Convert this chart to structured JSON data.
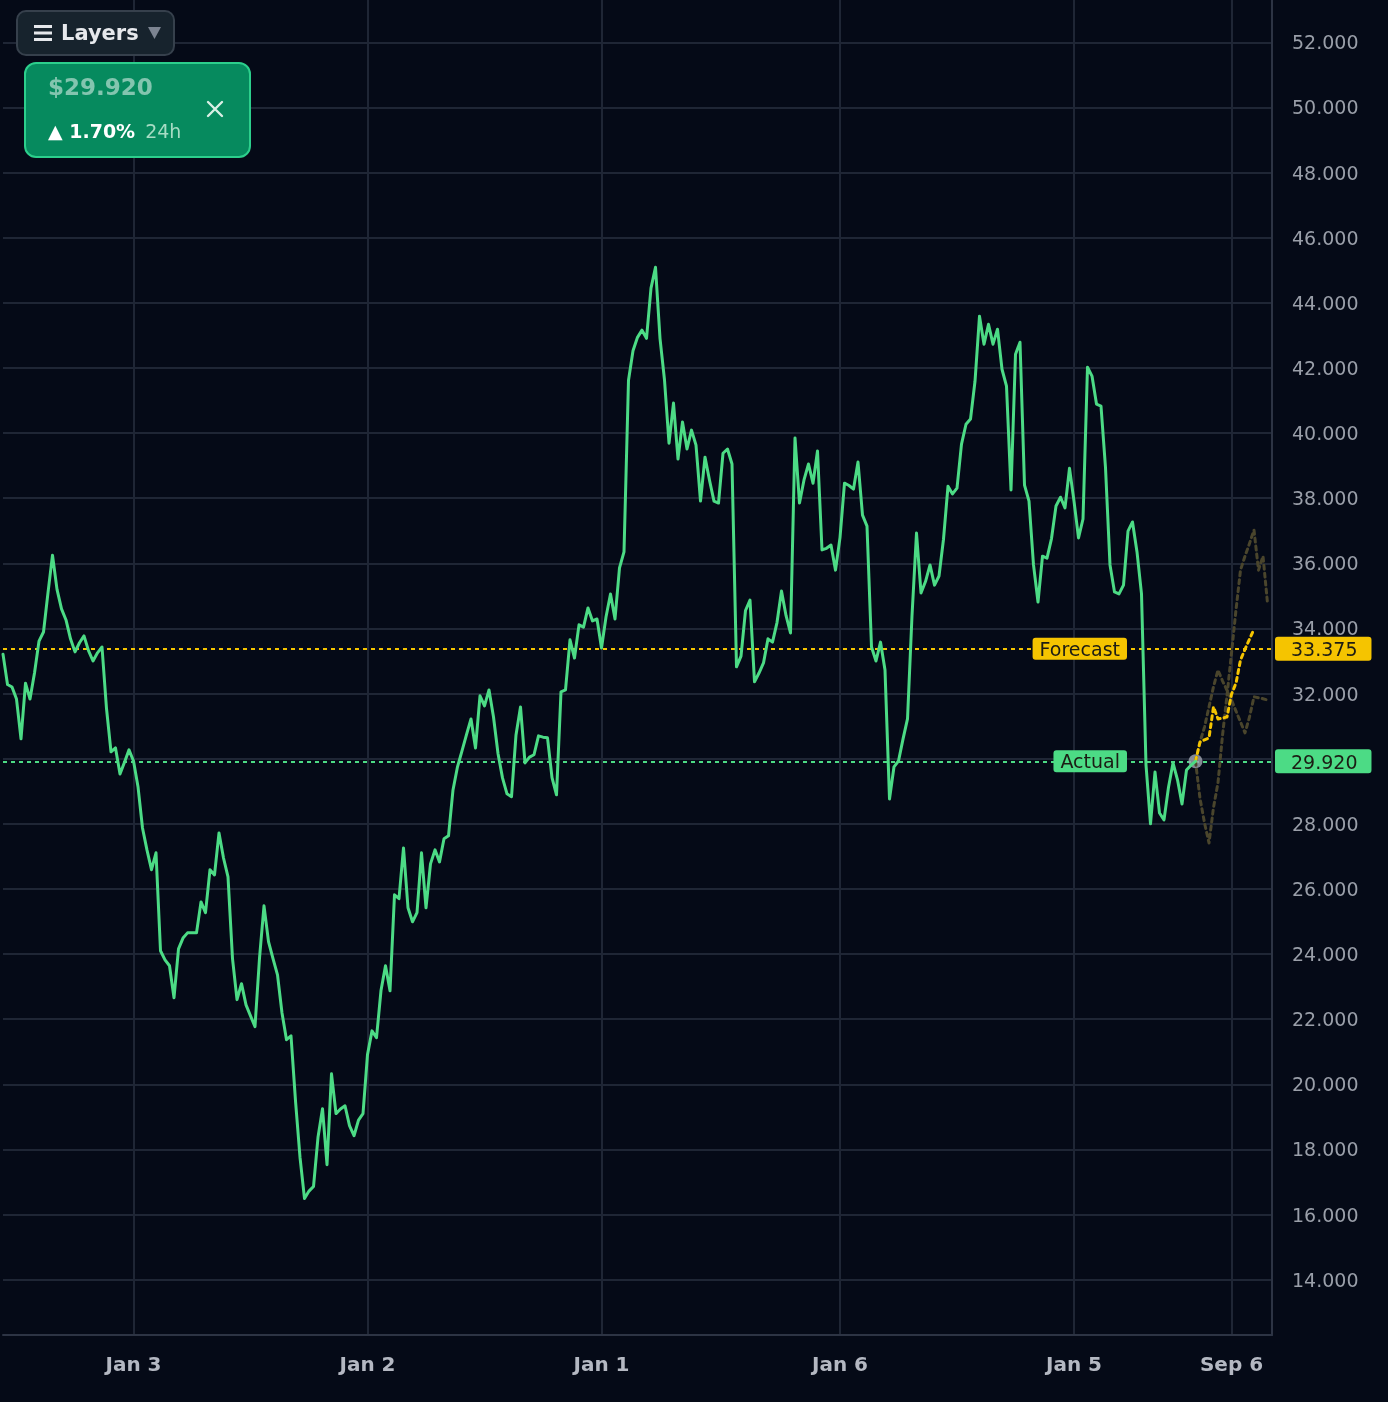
{
  "chart_data": {
    "type": "line",
    "categories": [
      null,
      null,
      null,
      null,
      null,
      null,
      null,
      null,
      null,
      null,
      null,
      null,
      null,
      null,
      null,
      null,
      null,
      null,
      null,
      null,
      null,
      null,
      null,
      null,
      null,
      null,
      null,
      null,
      null,
      "Jan 3",
      null,
      null,
      null,
      null,
      null,
      null,
      null,
      null,
      null,
      null,
      null,
      null,
      null,
      null,
      null,
      null,
      null,
      null,
      null,
      null,
      null,
      null,
      null,
      null,
      null,
      null,
      null,
      null,
      null,
      null,
      null,
      null,
      null,
      null,
      null,
      null,
      null,
      null,
      null,
      null,
      null,
      null,
      null,
      null,
      null,
      null,
      null,
      null,
      null,
      null,
      null,
      "Jan 2",
      null,
      null,
      null,
      null,
      null,
      null,
      null,
      null,
      null,
      null,
      null,
      null,
      null,
      null,
      null,
      null,
      null,
      null,
      null,
      null,
      null,
      null,
      null,
      null,
      null,
      null,
      null,
      null,
      null,
      null,
      null,
      null,
      null,
      null,
      null,
      null,
      null,
      null,
      null,
      null,
      null,
      null,
      null,
      null,
      null,
      null,
      null,
      null,
      null,
      null,
      null,
      "Jan 1",
      null,
      null,
      null,
      null,
      null,
      null,
      null,
      null,
      null,
      null,
      null,
      null,
      null,
      null,
      null,
      null,
      null,
      null,
      null,
      null,
      null,
      null,
      null,
      null,
      null,
      null,
      null,
      null,
      null,
      null,
      null,
      null,
      null,
      null,
      null,
      null,
      null,
      null,
      null,
      null,
      null,
      null,
      null,
      null,
      null,
      null,
      null,
      null,
      null,
      null,
      null,
      null,
      "Jan 6",
      null,
      null,
      null,
      null,
      null,
      null,
      null,
      null,
      null,
      null,
      null,
      null,
      null,
      null,
      null,
      null,
      null,
      null,
      null,
      null,
      null,
      null,
      null,
      null,
      null,
      null,
      null,
      null,
      null,
      null,
      null,
      null,
      null,
      null,
      null,
      null,
      null,
      null,
      null,
      null,
      null,
      null,
      null,
      null,
      null,
      null,
      null,
      null,
      null,
      null,
      null,
      "Jan 5",
      null,
      null,
      null,
      null,
      null,
      null,
      null,
      null,
      null,
      null,
      null,
      null,
      null,
      null,
      null,
      null,
      null,
      null,
      null,
      null,
      null,
      null,
      null,
      null,
      null,
      null,
      null,
      null,
      null,
      null,
      null,
      null,
      null,
      null,
      "Sep 6",
      null,
      null,
      null,
      null,
      null,
      null,
      null,
      null,
      null
    ],
    "series": [
      {
        "color": "#4cdb85",
        "values": [
          33.21,
          32.28,
          32.2,
          31.83,
          30.61,
          32.32,
          31.83,
          32.63,
          33.61,
          33.89,
          35.1,
          36.25,
          35.2,
          34.6,
          34.26,
          33.68,
          33.28,
          33.56,
          33.77,
          33.32,
          33.0,
          33.25,
          33.43,
          31.54,
          30.21,
          30.33,
          29.53,
          29.89,
          30.27,
          29.93,
          29.14,
          27.87,
          27.19,
          26.59,
          27.11,
          24.1,
          23.82,
          23.64,
          22.66,
          24.16,
          24.49,
          24.65,
          24.65,
          24.65,
          25.6,
          25.27,
          26.59,
          26.43,
          27.72,
          26.95,
          26.37,
          23.86,
          22.6,
          23.09,
          22.44,
          22.1,
          21.77,
          23.87,
          25.48,
          24.38,
          23.86,
          23.36,
          22.19,
          21.37,
          21.49,
          19.49,
          17.76,
          16.49,
          16.72,
          16.86,
          18.37,
          19.25,
          17.53,
          20.32,
          19.1,
          19.24,
          19.34,
          18.73,
          18.42,
          18.9,
          19.1,
          20.91,
          21.64,
          21.43,
          22.88,
          23.64,
          22.87,
          25.82,
          25.7,
          27.26,
          25.42,
          24.99,
          25.27,
          27.11,
          25.42,
          26.77,
          27.2,
          26.83,
          27.54,
          27.63,
          29.04,
          29.75,
          30.24,
          30.74,
          31.22,
          30.33,
          31.93,
          31.62,
          32.11,
          31.28,
          30.16,
          29.41,
          28.92,
          28.83,
          30.73,
          31.59,
          29.87,
          30.05,
          30.12,
          30.7,
          30.66,
          30.64,
          29.42,
          28.89,
          32.05,
          32.11,
          33.65,
          33.09,
          34.11,
          34.04,
          34.63,
          34.23,
          34.29,
          33.4,
          34.35,
          35.06,
          34.29,
          35.86,
          36.35,
          41.62,
          42.53,
          42.94,
          43.16,
          42.91,
          44.45,
          45.09,
          42.91,
          41.63,
          39.69,
          40.92,
          39.2,
          40.34,
          39.51,
          40.09,
          39.63,
          37.91,
          39.26,
          38.55,
          37.91,
          37.85,
          39.38,
          39.51,
          39.05,
          32.82,
          33.15,
          34.55,
          34.87,
          32.36,
          32.63,
          32.94,
          33.68,
          33.58,
          34.18,
          35.15,
          34.4,
          33.86,
          39.85,
          37.85,
          38.56,
          39.05,
          38.46,
          39.45,
          36.41,
          36.46,
          36.56,
          35.79,
          36.79,
          38.46,
          38.39,
          38.28,
          39.11,
          37.48,
          37.14,
          33.43,
          33.0,
          33.58,
          32.72,
          28.76,
          29.75,
          29.93,
          30.6,
          31.22,
          34.39,
          36.93,
          35.09,
          35.44,
          35.95,
          35.33,
          35.61,
          36.74,
          38.37,
          38.13,
          38.31,
          39.66,
          40.27,
          40.43,
          41.59,
          43.59,
          42.73,
          43.34,
          42.73,
          43.19,
          41.96,
          41.44,
          38.25,
          42.42,
          42.79,
          38.4,
          37.91,
          35.95,
          34.81,
          36.22,
          36.16,
          36.76,
          37.76,
          38.03,
          37.7,
          38.92,
          37.91,
          36.78,
          37.36,
          42.02,
          41.75,
          40.89,
          40.83,
          38.94,
          35.95,
          35.12,
          35.06,
          35.33,
          36.99,
          37.27,
          36.35,
          35.06,
          29.81,
          28.0,
          29.59,
          28.33,
          28.12,
          29.12,
          29.87,
          29.35,
          28.61,
          29.65,
          29.8,
          29.92,
          null,
          null,
          null,
          null,
          null,
          null,
          null,
          null,
          null,
          null,
          null,
          null,
          null,
          null,
          null,
          null,
          null
        ]
      },
      {
        "color": "#f5c400",
        "line_style": "dotted",
        "values": [
          null,
          null,
          null,
          null,
          null,
          null,
          null,
          null,
          null,
          null,
          null,
          null,
          null,
          null,
          null,
          null,
          null,
          null,
          null,
          null,
          null,
          null,
          null,
          null,
          null,
          null,
          null,
          null,
          null,
          null,
          null,
          null,
          null,
          null,
          null,
          null,
          null,
          null,
          null,
          null,
          null,
          null,
          null,
          null,
          null,
          null,
          null,
          null,
          null,
          null,
          null,
          null,
          null,
          null,
          null,
          null,
          null,
          null,
          null,
          null,
          null,
          null,
          null,
          null,
          null,
          null,
          null,
          null,
          null,
          null,
          null,
          null,
          null,
          null,
          null,
          null,
          null,
          null,
          null,
          null,
          null,
          null,
          null,
          null,
          null,
          null,
          null,
          null,
          null,
          null,
          null,
          null,
          null,
          null,
          null,
          null,
          null,
          null,
          null,
          null,
          null,
          null,
          null,
          null,
          null,
          null,
          null,
          null,
          null,
          null,
          null,
          null,
          null,
          null,
          null,
          null,
          null,
          null,
          null,
          null,
          null,
          null,
          null,
          null,
          null,
          null,
          null,
          null,
          null,
          null,
          null,
          null,
          null,
          null,
          null,
          null,
          null,
          null,
          null,
          null,
          null,
          null,
          null,
          null,
          null,
          null,
          null,
          null,
          null,
          null,
          null,
          null,
          null,
          null,
          null,
          null,
          null,
          null,
          null,
          null,
          null,
          null,
          null,
          null,
          null,
          null,
          null,
          null,
          null,
          null,
          null,
          null,
          null,
          null,
          null,
          null,
          null,
          null,
          null,
          null,
          null,
          null,
          null,
          null,
          null,
          null,
          null,
          null,
          null,
          null,
          null,
          null,
          null,
          null,
          null,
          null,
          null,
          null,
          null,
          null,
          null,
          null,
          null,
          null,
          null,
          null,
          null,
          null,
          null,
          null,
          null,
          null,
          null,
          null,
          null,
          null,
          null,
          null,
          null,
          null,
          null,
          null,
          null,
          null,
          null,
          null,
          null,
          null,
          null,
          null,
          null,
          null,
          null,
          null,
          null,
          null,
          null,
          null,
          null,
          null,
          null,
          null,
          null,
          null,
          null,
          null,
          null,
          null,
          null,
          null,
          null,
          null,
          null,
          null,
          null,
          null,
          null,
          null,
          null,
          null,
          null,
          null,
          null,
          null,
          null,
          29.92,
          30.51,
          30.58,
          30.64,
          31.59,
          31.22,
          31.25,
          31.28,
          31.98,
          32.32,
          33.03,
          33.36,
          33.67,
          33.98,
          null,
          null,
          null,
          null
        ]
      },
      {
        "color": "#4a452c",
        "line_style": "dotted",
        "values": [
          null,
          null,
          null,
          null,
          null,
          null,
          null,
          null,
          null,
          null,
          null,
          null,
          null,
          null,
          null,
          null,
          null,
          null,
          null,
          null,
          null,
          null,
          null,
          null,
          null,
          null,
          null,
          null,
          null,
          null,
          null,
          null,
          null,
          null,
          null,
          null,
          null,
          null,
          null,
          null,
          null,
          null,
          null,
          null,
          null,
          null,
          null,
          null,
          null,
          null,
          null,
          null,
          null,
          null,
          null,
          null,
          null,
          null,
          null,
          null,
          null,
          null,
          null,
          null,
          null,
          null,
          null,
          null,
          null,
          null,
          null,
          null,
          null,
          null,
          null,
          null,
          null,
          null,
          null,
          null,
          null,
          null,
          null,
          null,
          null,
          null,
          null,
          null,
          null,
          null,
          null,
          null,
          null,
          null,
          null,
          null,
          null,
          null,
          null,
          null,
          null,
          null,
          null,
          null,
          null,
          null,
          null,
          null,
          null,
          null,
          null,
          null,
          null,
          null,
          null,
          null,
          null,
          null,
          null,
          null,
          null,
          null,
          null,
          null,
          null,
          null,
          null,
          null,
          null,
          null,
          null,
          null,
          null,
          null,
          null,
          null,
          null,
          null,
          null,
          null,
          null,
          null,
          null,
          null,
          null,
          null,
          null,
          null,
          null,
          null,
          null,
          null,
          null,
          null,
          null,
          null,
          null,
          null,
          null,
          null,
          null,
          null,
          null,
          null,
          null,
          null,
          null,
          null,
          null,
          null,
          null,
          null,
          null,
          null,
          null,
          null,
          null,
          null,
          null,
          null,
          null,
          null,
          null,
          null,
          null,
          null,
          null,
          null,
          null,
          null,
          null,
          null,
          null,
          null,
          null,
          null,
          null,
          null,
          null,
          null,
          null,
          null,
          null,
          null,
          null,
          null,
          null,
          null,
          null,
          null,
          null,
          null,
          null,
          null,
          null,
          null,
          null,
          null,
          null,
          null,
          null,
          null,
          null,
          null,
          null,
          null,
          null,
          null,
          null,
          null,
          null,
          null,
          null,
          null,
          null,
          null,
          null,
          null,
          null,
          null,
          null,
          null,
          null,
          null,
          null,
          null,
          null,
          null,
          null,
          null,
          null,
          null,
          null,
          null,
          null,
          null,
          null,
          null,
          null,
          null,
          null,
          null,
          null,
          null,
          null,
          29.92,
          28.78,
          28.03,
          27.41,
          28.5,
          29.26,
          30.71,
          31.94,
          33.24,
          34.57,
          35.79,
          36.22,
          36.61,
          37.02,
          35.79,
          36.22,
          34.78,
          null
        ]
      },
      {
        "color": "#4a452c",
        "line_style": "dotted",
        "values": [
          null,
          null,
          null,
          null,
          null,
          null,
          null,
          null,
          null,
          null,
          null,
          null,
          null,
          null,
          null,
          null,
          null,
          null,
          null,
          null,
          null,
          null,
          null,
          null,
          null,
          null,
          null,
          null,
          null,
          null,
          null,
          null,
          null,
          null,
          null,
          null,
          null,
          null,
          null,
          null,
          null,
          null,
          null,
          null,
          null,
          null,
          null,
          null,
          null,
          null,
          null,
          null,
          null,
          null,
          null,
          null,
          null,
          null,
          null,
          null,
          null,
          null,
          null,
          null,
          null,
          null,
          null,
          null,
          null,
          null,
          null,
          null,
          null,
          null,
          null,
          null,
          null,
          null,
          null,
          null,
          null,
          null,
          null,
          null,
          null,
          null,
          null,
          null,
          null,
          null,
          null,
          null,
          null,
          null,
          null,
          null,
          null,
          null,
          null,
          null,
          null,
          null,
          null,
          null,
          null,
          null,
          null,
          null,
          null,
          null,
          null,
          null,
          null,
          null,
          null,
          null,
          null,
          null,
          null,
          null,
          null,
          null,
          null,
          null,
          null,
          null,
          null,
          null,
          null,
          null,
          null,
          null,
          null,
          null,
          null,
          null,
          null,
          null,
          null,
          null,
          null,
          null,
          null,
          null,
          null,
          null,
          null,
          null,
          null,
          null,
          null,
          null,
          null,
          null,
          null,
          null,
          null,
          null,
          null,
          null,
          null,
          null,
          null,
          null,
          null,
          null,
          null,
          null,
          null,
          null,
          null,
          null,
          null,
          null,
          null,
          null,
          null,
          null,
          null,
          null,
          null,
          null,
          null,
          null,
          null,
          null,
          null,
          null,
          null,
          null,
          null,
          null,
          null,
          null,
          null,
          null,
          null,
          null,
          null,
          null,
          null,
          null,
          null,
          null,
          null,
          null,
          null,
          null,
          null,
          null,
          null,
          null,
          null,
          null,
          null,
          null,
          null,
          null,
          null,
          null,
          null,
          null,
          null,
          null,
          null,
          null,
          null,
          null,
          null,
          null,
          null,
          null,
          null,
          null,
          null,
          null,
          null,
          null,
          null,
          null,
          null,
          null,
          null,
          null,
          null,
          null,
          null,
          null,
          null,
          null,
          null,
          null,
          null,
          null,
          null,
          null,
          null,
          null,
          null,
          null,
          null,
          null,
          null,
          null,
          null,
          29.92,
          30.51,
          30.97,
          31.59,
          32.21,
          32.72,
          32.39,
          32.1,
          31.8,
          31.46,
          31.13,
          30.79,
          31.28,
          31.9,
          31.87,
          31.84,
          31.8,
          null
        ]
      },
      {
        "type": "scatter",
        "marker": "circle",
        "color": "#a2a7b3",
        "values": [
          null,
          null,
          null,
          null,
          null,
          null,
          null,
          null,
          null,
          null,
          null,
          null,
          null,
          null,
          null,
          null,
          null,
          null,
          null,
          null,
          null,
          null,
          null,
          null,
          null,
          null,
          null,
          null,
          null,
          null,
          null,
          null,
          null,
          null,
          null,
          null,
          null,
          null,
          null,
          null,
          null,
          null,
          null,
          null,
          null,
          null,
          null,
          null,
          null,
          null,
          null,
          null,
          null,
          null,
          null,
          null,
          null,
          null,
          null,
          null,
          null,
          null,
          null,
          null,
          null,
          null,
          null,
          null,
          null,
          null,
          null,
          null,
          null,
          null,
          null,
          null,
          null,
          null,
          null,
          null,
          null,
          null,
          null,
          null,
          null,
          null,
          null,
          null,
          null,
          null,
          null,
          null,
          null,
          null,
          null,
          null,
          null,
          null,
          null,
          null,
          null,
          null,
          null,
          null,
          null,
          null,
          null,
          null,
          null,
          null,
          null,
          null,
          null,
          null,
          null,
          null,
          null,
          null,
          null,
          null,
          null,
          null,
          null,
          null,
          null,
          null,
          null,
          null,
          null,
          null,
          null,
          null,
          null,
          null,
          null,
          null,
          null,
          null,
          null,
          null,
          null,
          null,
          null,
          null,
          null,
          null,
          null,
          null,
          null,
          null,
          null,
          null,
          null,
          null,
          null,
          null,
          null,
          null,
          null,
          null,
          null,
          null,
          null,
          null,
          null,
          null,
          null,
          null,
          null,
          null,
          null,
          null,
          null,
          null,
          null,
          null,
          null,
          null,
          null,
          null,
          null,
          null,
          null,
          null,
          null,
          null,
          null,
          null,
          null,
          null,
          null,
          null,
          null,
          null,
          null,
          null,
          null,
          null,
          null,
          null,
          null,
          null,
          null,
          null,
          null,
          null,
          null,
          null,
          null,
          null,
          null,
          null,
          null,
          null,
          null,
          null,
          null,
          null,
          null,
          null,
          null,
          null,
          null,
          null,
          null,
          null,
          null,
          null,
          null,
          null,
          null,
          null,
          null,
          null,
          null,
          null,
          null,
          null,
          null,
          null,
          null,
          null,
          null,
          null,
          null,
          null,
          null,
          null,
          null,
          null,
          null,
          null,
          null,
          null,
          null,
          null,
          null,
          null,
          null,
          null,
          null,
          null,
          null,
          null,
          null,
          29.92,
          null,
          null,
          null,
          null,
          null,
          null,
          null,
          null,
          null,
          null,
          null,
          null,
          null,
          null,
          null,
          null,
          null
        ]
      }
    ],
    "ylim": [
      12.3,
      53.3
    ],
    "yticks": [
      {
        "value": 14,
        "label": "14.000"
      },
      {
        "value": 16,
        "label": "16.000"
      },
      {
        "value": 18,
        "label": "18.000"
      },
      {
        "value": 20,
        "label": "20.000"
      },
      {
        "value": 22,
        "label": "22.000"
      },
      {
        "value": 24,
        "label": "24.000"
      },
      {
        "value": 26,
        "label": "26.000"
      },
      {
        "value": 28,
        "label": "28.000"
      },
      {
        "value": 29.92,
        "label": "29.920"
      },
      {
        "value": 30,
        "label": null
      },
      {
        "value": 32,
        "label": "32.000"
      },
      {
        "value": 33.375,
        "label": "33.375"
      },
      {
        "value": 34,
        "label": "34.000"
      },
      {
        "value": 36,
        "label": "36.000"
      },
      {
        "value": 38,
        "label": "38.000"
      },
      {
        "value": 40,
        "label": "40.000"
      },
      {
        "value": 42,
        "label": "42.000"
      },
      {
        "value": 44,
        "label": "44.000"
      },
      {
        "value": 46,
        "label": "46.000"
      },
      {
        "value": 48,
        "label": "48.000"
      },
      {
        "value": 50,
        "label": "50.000"
      },
      {
        "value": 52,
        "label": "52.000"
      }
    ],
    "ref_lines": [
      {
        "axis": "y",
        "value": 33.375,
        "label": "Forecast",
        "color": "#f5c400",
        "line_style": "dotted"
      },
      {
        "axis": "y",
        "value": 29.92,
        "label": "Actual",
        "color": "#4cdb85",
        "line_style": "dotted"
      }
    ],
    "annotations": [
      "Layers",
      "$29.920",
      "▲ 1.70%",
      "24h"
    ],
    "grid": true,
    "marker": "none",
    "line_style": "solid"
  }
}
